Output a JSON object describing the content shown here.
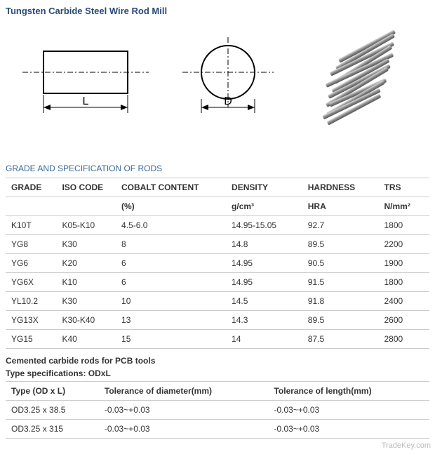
{
  "title": "Tungsten Carbide Steel Wire Rod Mill",
  "diagram": {
    "length_label": "L",
    "diameter_label": "D"
  },
  "section1_heading": "GRADE AND SPECIFICATION OF RODS",
  "table1": {
    "headers": [
      "GRADE",
      "ISO CODE",
      "COBALT CONTENT",
      "DENSITY",
      "HARDNESS",
      "TRS"
    ],
    "units": [
      "",
      "",
      "(%)",
      "g/cm³",
      "HRA",
      "N/mm²"
    ],
    "rows": [
      [
        "K10T",
        "K05-K10",
        "4.5-6.0",
        "14.95-15.05",
        "92.7",
        "1800"
      ],
      [
        "YG8",
        "K30",
        "8",
        "14.8",
        "89.5",
        "2200"
      ],
      [
        "YG6",
        "K20",
        "6",
        "14.95",
        "90.5",
        "1900"
      ],
      [
        "YG6X",
        "K10",
        "6",
        "14.95",
        "91.5",
        "1800"
      ],
      [
        "YL10.2",
        "K30",
        "10",
        "14.5",
        "91.8",
        "2400"
      ],
      [
        "YG13X",
        "K30-K40",
        "13",
        "14.3",
        "89.5",
        "2600"
      ],
      [
        "YG15",
        "K40",
        "15",
        "14",
        "87.5",
        "2800"
      ]
    ]
  },
  "subtitle1": "Cemented carbide rods for PCB tools",
  "subtitle2": "Type specifications: ODxL",
  "table2": {
    "headers": [
      "Type (OD x L)",
      "Tolerance of diameter(mm)",
      "Tolerance of length(mm)"
    ],
    "rows": [
      [
        "OD3.25 x 38.5",
        "-0.03~+0.03",
        "-0.03~+0.03"
      ],
      [
        "OD3.25 x 315",
        "-0.03~+0.03",
        "-0.03~+0.03"
      ]
    ]
  },
  "watermark": "TradeKey.com",
  "colors": {
    "title": "#2a4a7a",
    "heading": "#3a6a9a",
    "border": "#cccccc",
    "text": "#333333"
  }
}
